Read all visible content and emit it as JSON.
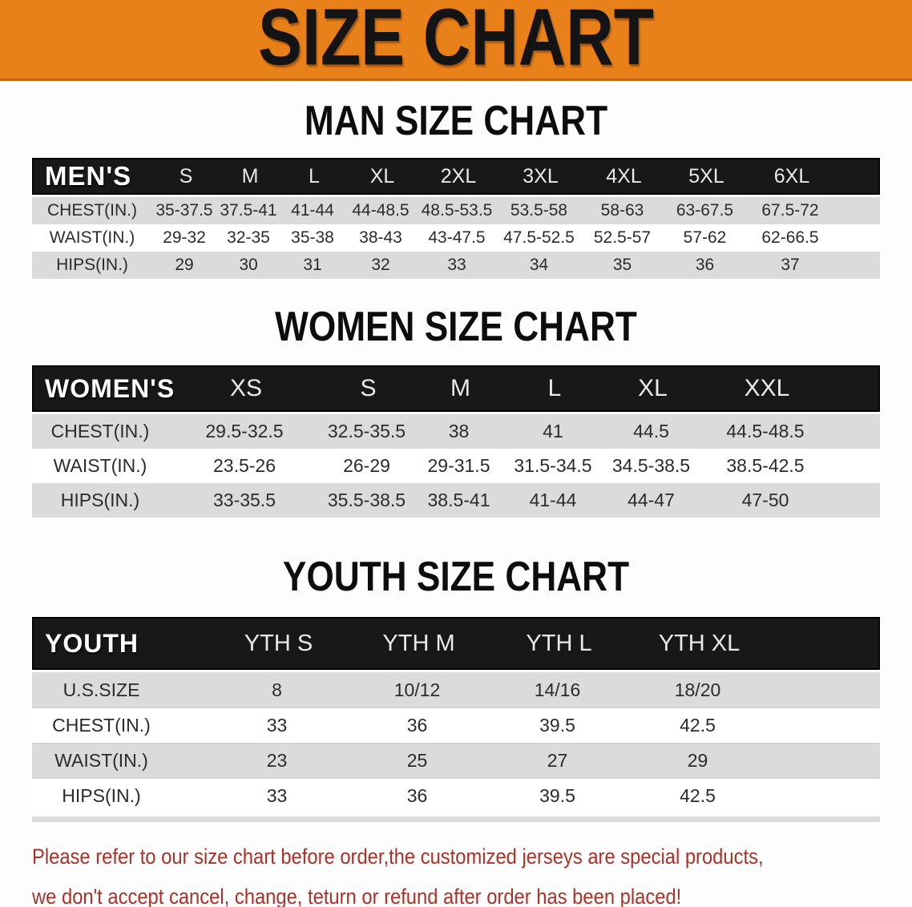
{
  "banner": {
    "title": "SIZE CHART",
    "bg_color": "#e8811a"
  },
  "theme": {
    "bar_bg": "#181818",
    "row_alt_bg": "#dbdbdb",
    "disclaimer_color": "#a93229"
  },
  "sections": [
    {
      "id": "men",
      "heading": "MAN SIZE CHART",
      "corner_label": "MEN'S",
      "sizes": [
        "S",
        "M",
        "L",
        "XL",
        "2XL",
        "3XL",
        "4XL",
        "5XL",
        "6XL"
      ],
      "rows": [
        {
          "label": "CHEST(IN.)",
          "values": [
            "35-37.5",
            "37.5-41",
            "41-44",
            "44-48.5",
            "48.5-53.5",
            "53.5-58",
            "58-63",
            "63-67.5",
            "67.5-72"
          ]
        },
        {
          "label": "WAIST(IN.)",
          "values": [
            "29-32",
            "32-35",
            "35-38",
            "38-43",
            "43-47.5",
            "47.5-52.5",
            "52.5-57",
            "57-62",
            "62-66.5"
          ]
        },
        {
          "label": "HIPS(IN.)",
          "values": [
            "29",
            "30",
            "31",
            "32",
            "33",
            "34",
            "35",
            "36",
            "37"
          ]
        }
      ]
    },
    {
      "id": "women",
      "heading": "WOMEN SIZE CHART",
      "corner_label": "WOMEN'S",
      "sizes": [
        "XS",
        "S",
        "M",
        "L",
        "XL",
        "XXL"
      ],
      "rows": [
        {
          "label": "CHEST(IN.)",
          "values": [
            "29.5-32.5",
            "32.5-35.5",
            "38",
            "41",
            "44.5",
            "44.5-48.5"
          ]
        },
        {
          "label": "WAIST(IN.)",
          "values": [
            "23.5-26",
            "26-29",
            "29-31.5",
            "31.5-34.5",
            "34.5-38.5",
            "38.5-42.5"
          ]
        },
        {
          "label": "HIPS(IN.)",
          "values": [
            "33-35.5",
            "35.5-38.5",
            "38.5-41",
            "41-44",
            "44-47",
            "47-50"
          ]
        }
      ]
    },
    {
      "id": "youth",
      "heading": "YOUTH SIZE CHART",
      "corner_label": "YOUTH",
      "sizes": [
        "YTH S",
        "YTH M",
        "YTH L",
        "YTH XL"
      ],
      "rows": [
        {
          "label": "U.S.SIZE",
          "values": [
            "8",
            "10/12",
            "14/16",
            "18/20"
          ]
        },
        {
          "label": "CHEST(IN.)",
          "values": [
            "33",
            "36",
            "39.5",
            "42.5"
          ]
        },
        {
          "label": "WAIST(IN.)",
          "values": [
            "23",
            "25",
            "27",
            "29"
          ]
        },
        {
          "label": "HIPS(IN.)",
          "values": [
            "33",
            "36",
            "39.5",
            "42.5"
          ]
        }
      ]
    }
  ],
  "disclaimer": {
    "lines": [
      "Please refer to our size chart before order,the customized jerseys are special products,",
      "we don't accept cancel, change, teturn or refund after order has been placed!"
    ]
  }
}
